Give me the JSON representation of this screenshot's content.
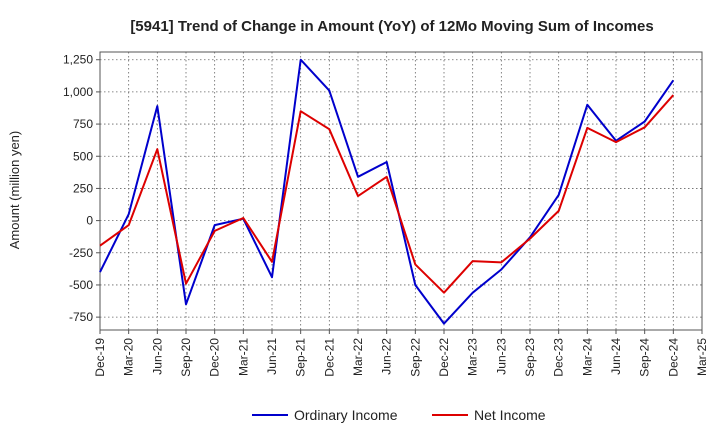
{
  "chart_data": {
    "type": "line",
    "title": "[5941]  Trend of Change in Amount (YoY) of 12Mo Moving Sum of Incomes",
    "xlabel": "",
    "ylabel": "Amount (million yen)",
    "ylim": [
      -850,
      1310
    ],
    "yticks": [
      -750,
      -500,
      -250,
      0,
      250,
      500,
      750,
      1000,
      1250
    ],
    "ytick_labels": [
      "-750",
      "-500",
      "-250",
      "0",
      "250",
      "500",
      "750",
      "1,000",
      "1,250"
    ],
    "categories": [
      "Dec-19",
      "Mar-20",
      "Jun-20",
      "Sep-20",
      "Dec-20",
      "Mar-21",
      "Jun-21",
      "Sep-21",
      "Dec-21",
      "Mar-22",
      "Jun-22",
      "Sep-22",
      "Dec-22",
      "Mar-23",
      "Jun-23",
      "Sep-23",
      "Dec-23",
      "Mar-24",
      "Jun-24",
      "Sep-24",
      "Dec-24",
      "Mar-25"
    ],
    "series": [
      {
        "name": "Ordinary Income",
        "color": "#0000cc",
        "values": [
          -400,
          50,
          890,
          -650,
          -35,
          15,
          -440,
          1250,
          1010,
          340,
          455,
          -500,
          -800,
          -560,
          -380,
          -130,
          200,
          900,
          620,
          770,
          1090,
          null
        ]
      },
      {
        "name": "Net Income",
        "color": "#dd0000",
        "values": [
          -195,
          -35,
          555,
          -490,
          -80,
          20,
          -320,
          850,
          710,
          190,
          340,
          -340,
          -560,
          -315,
          -325,
          -140,
          75,
          720,
          610,
          725,
          975,
          null
        ]
      }
    ],
    "grid": true,
    "legend": "bottom-center"
  }
}
